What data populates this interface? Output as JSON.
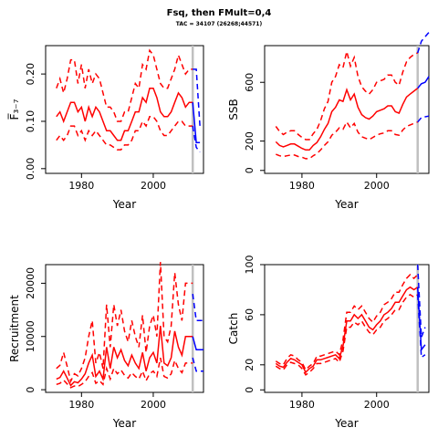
{
  "title": "Fsq, then FMult=0,4",
  "subtitle": "TAC = 34107 (26268;44571)",
  "colors": {
    "history": "#ff0000",
    "projection": "#0000ff",
    "split_line": "#c0c0c0",
    "axes": "#000000"
  },
  "chart_data": [
    {
      "type": "line",
      "panel": "top-left",
      "ylabel": "F̅₃₋₇",
      "xlabel": "Year",
      "xlim": [
        1970,
        2014
      ],
      "ylim": [
        -0.01,
        0.26
      ],
      "xticks": [
        1980,
        2000
      ],
      "yticks": [
        0.0,
        0.1,
        0.2
      ],
      "ytick_labels": [
        "0.00",
        "0.10",
        "0.20"
      ],
      "split_year": 2011,
      "history": {
        "x": [
          1973,
          1974,
          1975,
          1976,
          1977,
          1978,
          1979,
          1980,
          1981,
          1982,
          1983,
          1984,
          1985,
          1986,
          1987,
          1988,
          1989,
          1990,
          1991,
          1992,
          1993,
          1994,
          1995,
          1996,
          1997,
          1998,
          1999,
          2000,
          2001,
          2002,
          2003,
          2004,
          2005,
          2006,
          2007,
          2008,
          2009,
          2010,
          2011
        ],
        "median": [
          0.11,
          0.12,
          0.1,
          0.12,
          0.14,
          0.14,
          0.12,
          0.13,
          0.1,
          0.13,
          0.11,
          0.13,
          0.12,
          0.1,
          0.08,
          0.08,
          0.07,
          0.06,
          0.06,
          0.08,
          0.08,
          0.1,
          0.12,
          0.12,
          0.15,
          0.14,
          0.17,
          0.17,
          0.15,
          0.12,
          0.11,
          0.11,
          0.12,
          0.14,
          0.16,
          0.15,
          0.13,
          0.14,
          0.14
        ],
        "lower": [
          0.06,
          0.07,
          0.06,
          0.07,
          0.09,
          0.09,
          0.07,
          0.08,
          0.06,
          0.08,
          0.07,
          0.08,
          0.07,
          0.06,
          0.05,
          0.05,
          0.045,
          0.04,
          0.04,
          0.05,
          0.05,
          0.06,
          0.08,
          0.08,
          0.1,
          0.09,
          0.11,
          0.11,
          0.1,
          0.08,
          0.07,
          0.07,
          0.08,
          0.09,
          0.1,
          0.1,
          0.09,
          0.09,
          0.09
        ],
        "upper": [
          0.17,
          0.19,
          0.16,
          0.19,
          0.23,
          0.23,
          0.18,
          0.22,
          0.17,
          0.21,
          0.18,
          0.2,
          0.19,
          0.16,
          0.13,
          0.13,
          0.12,
          0.1,
          0.1,
          0.12,
          0.12,
          0.15,
          0.18,
          0.17,
          0.22,
          0.21,
          0.25,
          0.24,
          0.21,
          0.18,
          0.17,
          0.17,
          0.19,
          0.21,
          0.24,
          0.22,
          0.2,
          0.21,
          0.21
        ]
      },
      "projection": {
        "x": [
          2011,
          2012,
          2013
        ],
        "median": [
          0.14,
          0.055,
          0.055
        ],
        "lower": [
          0.09,
          0.045,
          0.035
        ],
        "upper": [
          0.21,
          0.21,
          0.09
        ]
      }
    },
    {
      "type": "line",
      "panel": "top-right",
      "ylabel": "SSB",
      "xlabel": "Year",
      "xlim": [
        1970,
        2014
      ],
      "ylim": [
        -20,
        850
      ],
      "xticks": [
        1980,
        2000
      ],
      "yticks": [
        0,
        200,
        600
      ],
      "ytick_labels": [
        "0",
        "200",
        "600"
      ],
      "split_year": 2011,
      "history": {
        "x": [
          1973,
          1974,
          1975,
          1976,
          1977,
          1978,
          1979,
          1980,
          1981,
          1982,
          1983,
          1984,
          1985,
          1986,
          1987,
          1988,
          1989,
          1990,
          1991,
          1992,
          1993,
          1994,
          1995,
          1996,
          1997,
          1998,
          1999,
          2000,
          2001,
          2002,
          2003,
          2004,
          2005,
          2006,
          2007,
          2008,
          2009,
          2010,
          2011
        ],
        "median": [
          195,
          170,
          160,
          170,
          180,
          180,
          165,
          150,
          140,
          140,
          170,
          190,
          230,
          280,
          320,
          400,
          430,
          480,
          470,
          550,
          480,
          520,
          430,
          380,
          360,
          350,
          370,
          400,
          410,
          420,
          440,
          440,
          400,
          390,
          450,
          500,
          520,
          540,
          560
        ],
        "lower": [
          110,
          100,
          95,
          100,
          105,
          105,
          95,
          90,
          80,
          80,
          100,
          115,
          140,
          170,
          195,
          240,
          260,
          290,
          280,
          330,
          290,
          320,
          260,
          230,
          220,
          210,
          225,
          240,
          250,
          255,
          270,
          270,
          245,
          240,
          275,
          300,
          310,
          320,
          330
        ],
        "upper": [
          300,
          265,
          245,
          260,
          270,
          270,
          245,
          225,
          210,
          210,
          250,
          280,
          340,
          420,
          470,
          600,
          640,
          720,
          700,
          810,
          710,
          770,
          640,
          570,
          540,
          520,
          550,
          600,
          610,
          620,
          650,
          650,
          600,
          580,
          670,
          740,
          770,
          790,
          800
        ]
      },
      "projection": {
        "x": [
          2011,
          2012,
          2013,
          2014
        ],
        "median": [
          560,
          590,
          600,
          640
        ],
        "lower": [
          330,
          360,
          365,
          370
        ],
        "upper": [
          800,
          880,
          910,
          940
        ]
      }
    },
    {
      "type": "line",
      "panel": "bottom-left",
      "ylabel": "Recruitment",
      "xlabel": "Year",
      "xlim": [
        1970,
        2014
      ],
      "ylim": [
        -500,
        23500
      ],
      "xticks": [
        1980,
        2000
      ],
      "yticks": [
        0,
        10000,
        20000
      ],
      "ytick_labels": [
        "0",
        "10000",
        "20000"
      ],
      "split_year": 2011,
      "history": {
        "x": [
          1973,
          1974,
          1975,
          1976,
          1977,
          1978,
          1979,
          1980,
          1981,
          1982,
          1983,
          1984,
          1985,
          1986,
          1987,
          1988,
          1989,
          1990,
          1991,
          1992,
          1993,
          1994,
          1995,
          1996,
          1997,
          1998,
          1999,
          2000,
          2001,
          2002,
          2003,
          2004,
          2005,
          2006,
          2007,
          2008,
          2009,
          2010,
          2011
        ],
        "median": [
          2000,
          2300,
          3500,
          2200,
          800,
          1500,
          1300,
          2000,
          3000,
          5000,
          6500,
          2500,
          3500,
          2000,
          8000,
          4000,
          8000,
          6000,
          7500,
          5500,
          4500,
          6500,
          5000,
          4000,
          7000,
          3500,
          6000,
          7000,
          5000,
          12000,
          5000,
          4500,
          6000,
          11000,
          8000,
          6500,
          10000,
          10000,
          10000
        ],
        "lower": [
          1000,
          1200,
          1800,
          1100,
          400,
          700,
          600,
          1000,
          1500,
          2500,
          3200,
          1200,
          1700,
          1000,
          4000,
          2000,
          4000,
          3000,
          3700,
          2700,
          2200,
          3200,
          2500,
          2000,
          3500,
          1700,
          3000,
          3500,
          2500,
          6000,
          2500,
          2200,
          3000,
          5500,
          4000,
          3200,
          5000,
          5000,
          5000
        ],
        "upper": [
          4000,
          4600,
          7000,
          4400,
          1600,
          3000,
          2600,
          4000,
          6000,
          10000,
          13000,
          5000,
          7000,
          4000,
          16000,
          8000,
          16000,
          12000,
          15000,
          11000,
          9000,
          13000,
          10000,
          8000,
          14000,
          7000,
          12000,
          14000,
          10000,
          24000,
          10000,
          9000,
          12000,
          22000,
          16000,
          13000,
          20000,
          20000,
          20000
        ]
      },
      "projection": {
        "x": [
          2011,
          2012,
          2013,
          2014
        ],
        "median": [
          10000,
          7500,
          7500,
          7500
        ],
        "lower": [
          6000,
          3500,
          3500,
          3500
        ],
        "upper": [
          18000,
          13000,
          13000,
          13000
        ]
      }
    },
    {
      "type": "line",
      "panel": "bottom-right",
      "ylabel": "Catch",
      "xlabel": "Year",
      "xlim": [
        1970,
        2014
      ],
      "ylim": [
        -2,
        100
      ],
      "xticks": [
        1980,
        2000
      ],
      "yticks": [
        0,
        20,
        60,
        100
      ],
      "ytick_labels": [
        "0",
        "20",
        "60",
        "100"
      ],
      "split_year": 2011,
      "history": {
        "x": [
          1973,
          1974,
          1975,
          1976,
          1977,
          1978,
          1979,
          1980,
          1981,
          1982,
          1983,
          1984,
          1985,
          1986,
          1987,
          1988,
          1989,
          1990,
          1991,
          1992,
          1993,
          1994,
          1995,
          1996,
          1997,
          1998,
          1999,
          2000,
          2001,
          2002,
          2003,
          2004,
          2005,
          2006,
          2007,
          2008,
          2009,
          2010,
          2011
        ],
        "median": [
          21,
          19,
          18,
          22,
          25,
          24,
          22,
          20,
          14,
          17,
          19,
          24,
          24,
          25,
          26,
          27,
          28,
          25,
          35,
          55,
          55,
          60,
          57,
          60,
          55,
          50,
          48,
          52,
          55,
          60,
          62,
          65,
          70,
          70,
          75,
          80,
          82,
          80,
          82
        ],
        "lower": [
          19,
          17,
          16,
          20,
          22,
          21,
          20,
          17,
          12,
          14,
          17,
          21,
          21,
          22,
          23,
          24,
          25,
          22,
          31,
          50,
          50,
          54,
          52,
          55,
          50,
          46,
          44,
          48,
          50,
          55,
          57,
          60,
          64,
          64,
          70,
          74,
          76,
          74,
          76
        ],
        "upper": [
          23,
          21,
          20,
          25,
          28,
          27,
          24,
          22,
          16,
          19,
          21,
          27,
          27,
          28,
          29,
          30,
          31,
          28,
          40,
          62,
          62,
          67,
          64,
          67,
          62,
          57,
          54,
          59,
          62,
          68,
          70,
          73,
          78,
          78,
          84,
          89,
          92,
          89,
          92
        ]
      },
      "projection": {
        "x": [
          2011,
          2012,
          2013
        ],
        "median": [
          82,
          32,
          36
        ],
        "lower": [
          76,
          26,
          28
        ],
        "upper": [
          100,
          42,
          50
        ]
      }
    }
  ]
}
